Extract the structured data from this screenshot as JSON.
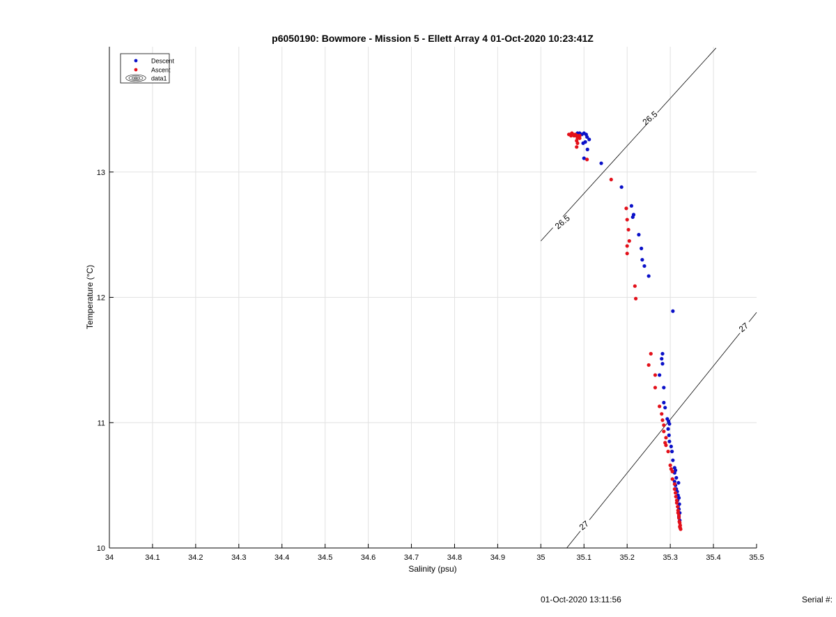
{
  "chart_data": {
    "type": "scatter",
    "title": "p6050190: Bowmore - Mission 5 - Ellett Array 4 01-Oct-2020 10:23:41Z",
    "xlabel": "Salinity (psu)",
    "ylabel": "Temperature (°C)",
    "xlim": [
      34,
      35.5
    ],
    "ylim": [
      10,
      14.0
    ],
    "xticks": [
      "34",
      "34.1",
      "34.2",
      "34.3",
      "34.4",
      "34.5",
      "34.6",
      "34.7",
      "34.8",
      "34.9",
      "35",
      "35.1",
      "35.2",
      "35.3",
      "35.4",
      "35.5"
    ],
    "yticks": [
      "10",
      "11",
      "12",
      "13"
    ],
    "grid": true,
    "legend_position": "top-left",
    "legend": [
      "Descent",
      "Ascent",
      "data1"
    ],
    "colors": {
      "descent": "#0a10c8",
      "ascent": "#e3101a",
      "contour": "#000000",
      "grid": "#e2e2e2"
    },
    "contours": [
      {
        "level": "26.5",
        "x": [
          35.0,
          35.406
        ],
        "y": [
          12.45,
          13.99
        ]
      },
      {
        "level": "27",
        "x": [
          35.06,
          35.5
        ],
        "y": [
          10.0,
          11.88
        ]
      }
    ],
    "contour_labels": [
      {
        "text": "26.5",
        "x": 35.05,
        "y": 12.6
      },
      {
        "text": "26.5",
        "x": 35.253,
        "y": 13.43
      },
      {
        "text": "27",
        "x": 35.1,
        "y": 10.18
      },
      {
        "text": "27",
        "x": 35.47,
        "y": 11.76
      }
    ],
    "series": [
      {
        "name": "Descent",
        "x": [
          35.085,
          35.09,
          35.095,
          35.1,
          35.105,
          35.107,
          35.103,
          35.098,
          35.112,
          35.108,
          35.1,
          35.14,
          35.187,
          35.21,
          35.215,
          35.213,
          35.227,
          35.233,
          35.235,
          35.24,
          35.25,
          35.306,
          35.282,
          35.28,
          35.282,
          35.275,
          35.285,
          35.285,
          35.288,
          35.293,
          35.296,
          35.298,
          35.295,
          35.297,
          35.298,
          35.302,
          35.304,
          35.306,
          35.31,
          35.312,
          35.31,
          35.314,
          35.31,
          35.312,
          35.319,
          35.314,
          35.316,
          35.318,
          35.32,
          35.317,
          35.321,
          35.318,
          35.32,
          35.322,
          35.32,
          35.322
        ],
        "y": [
          13.31,
          13.31,
          13.3,
          13.31,
          13.3,
          13.28,
          13.24,
          13.23,
          13.26,
          13.18,
          13.11,
          13.07,
          12.88,
          12.73,
          12.66,
          12.64,
          12.5,
          12.39,
          12.3,
          12.25,
          12.17,
          11.89,
          11.55,
          11.51,
          11.47,
          11.38,
          11.28,
          11.16,
          11.12,
          11.03,
          11.01,
          10.99,
          10.95,
          10.9,
          10.85,
          10.81,
          10.77,
          10.7,
          10.64,
          10.62,
          10.6,
          10.56,
          10.53,
          10.5,
          10.52,
          10.47,
          10.45,
          10.42,
          10.4,
          10.38,
          10.35,
          10.33,
          10.31,
          10.28,
          10.25,
          10.22
        ]
      },
      {
        "name": "Ascent",
        "x": [
          35.065,
          35.068,
          35.07,
          35.072,
          35.075,
          35.077,
          35.08,
          35.082,
          35.085,
          35.087,
          35.09,
          35.075,
          35.083,
          35.085,
          35.083,
          35.09,
          35.085,
          35.083,
          35.107,
          35.163,
          35.198,
          35.2,
          35.203,
          35.205,
          35.2,
          35.2,
          35.218,
          35.22,
          35.255,
          35.25,
          35.265,
          35.265,
          35.275,
          35.28,
          35.282,
          35.285,
          35.285,
          35.29,
          35.288,
          35.29,
          35.295,
          35.3,
          35.302,
          35.305,
          35.305,
          35.31,
          35.31,
          35.312,
          35.313,
          35.315,
          35.315,
          35.317,
          35.318,
          35.318,
          35.32,
          35.32,
          35.321,
          35.322,
          35.323,
          35.322,
          35.323,
          35.324
        ],
        "y": [
          13.3,
          13.3,
          13.29,
          13.31,
          13.3,
          13.29,
          13.3,
          13.29,
          13.27,
          13.28,
          13.27,
          13.3,
          13.25,
          13.23,
          13.2,
          13.29,
          13.29,
          13.29,
          13.1,
          12.94,
          12.71,
          12.62,
          12.54,
          12.45,
          12.41,
          12.35,
          12.09,
          11.99,
          11.55,
          11.46,
          11.38,
          11.28,
          11.13,
          11.07,
          11.02,
          10.98,
          10.93,
          10.88,
          10.84,
          10.82,
          10.77,
          10.66,
          10.63,
          10.61,
          10.55,
          10.51,
          10.47,
          10.44,
          10.41,
          10.38,
          10.36,
          10.33,
          10.3,
          10.28,
          10.26,
          10.24,
          10.21,
          10.2,
          10.18,
          10.17,
          10.16,
          10.15
        ]
      }
    ]
  },
  "footer": {
    "date": "01-Oct-2020 13:11:56",
    "serial": "Serial #:"
  }
}
